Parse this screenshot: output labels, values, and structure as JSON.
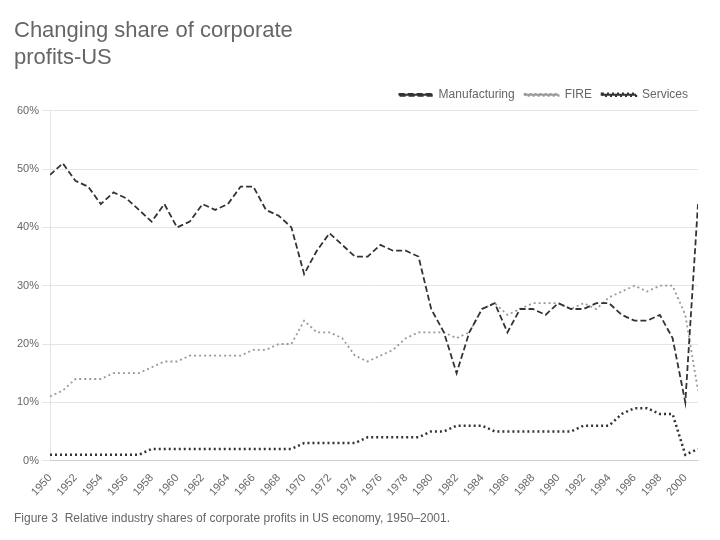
{
  "chart_data": {
    "type": "line",
    "title": "Changing share of corporate\nprofits-US",
    "caption": "Figure 3  Relative industry shares of corporate profits in US economy, 1950–2001.",
    "x": [
      1950,
      1951,
      1952,
      1953,
      1954,
      1955,
      1956,
      1957,
      1958,
      1959,
      1960,
      1961,
      1962,
      1963,
      1964,
      1965,
      1966,
      1967,
      1968,
      1969,
      1970,
      1971,
      1972,
      1973,
      1974,
      1975,
      1976,
      1977,
      1978,
      1979,
      1980,
      1981,
      1982,
      1983,
      1984,
      1985,
      1986,
      1987,
      1988,
      1989,
      1990,
      1991,
      1992,
      1993,
      1994,
      1995,
      1996,
      1997,
      1998,
      1999,
      2000,
      2001
    ],
    "series": [
      {
        "name": "Manufacturing",
        "color": "#333333",
        "line_style": "dashed",
        "values": [
          49,
          51,
          48,
          47,
          44,
          46,
          45,
          43,
          41,
          44,
          40,
          41,
          44,
          43,
          44,
          47,
          47,
          43,
          42,
          40,
          32,
          36,
          39,
          37,
          35,
          35,
          37,
          36,
          36,
          35,
          26,
          22,
          15,
          22,
          26,
          27,
          22,
          26,
          26,
          25,
          27,
          26,
          26,
          27,
          27,
          25,
          24,
          24,
          25,
          21,
          10,
          44
        ]
      },
      {
        "name": "FIRE",
        "color": "#999999",
        "line_style": "dotted",
        "values": [
          11,
          12,
          14,
          14,
          14,
          15,
          15,
          15,
          16,
          17,
          17,
          18,
          18,
          18,
          18,
          18,
          19,
          19,
          20,
          20,
          24,
          22,
          22,
          21,
          18,
          17,
          18,
          19,
          21,
          22,
          22,
          22,
          21,
          22,
          26,
          27,
          25,
          26,
          27,
          27,
          27,
          26,
          27,
          26,
          28,
          29,
          30,
          29,
          30,
          30,
          25,
          12
        ]
      },
      {
        "name": "Services",
        "color": "#333333",
        "line_style": "dotted",
        "values": [
          1,
          1,
          1,
          1,
          1,
          1,
          1,
          1,
          2,
          2,
          2,
          2,
          2,
          2,
          2,
          2,
          2,
          2,
          2,
          2,
          3,
          3,
          3,
          3,
          3,
          4,
          4,
          4,
          4,
          4,
          5,
          5,
          6,
          6,
          6,
          5,
          5,
          5,
          5,
          5,
          5,
          5,
          6,
          6,
          6,
          8,
          9,
          9,
          8,
          8,
          1,
          2
        ]
      }
    ],
    "xlim": [
      1950,
      2001
    ],
    "xticks": [
      1950,
      1952,
      1954,
      1956,
      1958,
      1960,
      1962,
      1964,
      1966,
      1968,
      1970,
      1972,
      1974,
      1976,
      1978,
      1980,
      1982,
      1984,
      1986,
      1988,
      1990,
      1992,
      1994,
      1996,
      1998,
      2000
    ],
    "ylim": [
      0,
      60
    ],
    "yticks": [
      {
        "value": 0,
        "label": "0%"
      },
      {
        "value": 10,
        "label": "10%"
      },
      {
        "value": 20,
        "label": "20%"
      },
      {
        "value": 30,
        "label": "30%"
      },
      {
        "value": 40,
        "label": "40%"
      },
      {
        "value": 50,
        "label": "50%"
      },
      {
        "value": 60,
        "label": "60%"
      }
    ],
    "grid": true,
    "legend": "upper right"
  }
}
